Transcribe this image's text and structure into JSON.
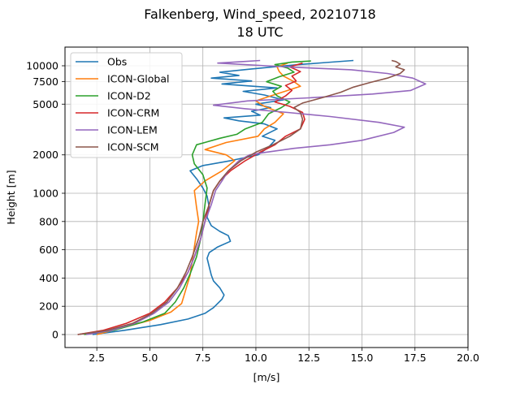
{
  "chart_data": {
    "type": "line",
    "title_line1": "Falkenberg, Wind_speed, 20210718",
    "title_line2": "18 UTC",
    "xlabel": "[m/s]",
    "ylabel": "Height [m]",
    "xlim": [
      1.0,
      20.0
    ],
    "x_ticks": [
      2.5,
      5.0,
      7.5,
      10.0,
      12.5,
      15.0,
      17.5,
      20.0
    ],
    "x_tick_labels": [
      "2.5",
      "5.0",
      "7.5",
      "10.0",
      "12.5",
      "15.0",
      "17.5",
      "20.0"
    ],
    "y_scale": "linear below 1000 m, logarithmic above",
    "y_ticks": [
      0,
      200,
      400,
      600,
      800,
      1000,
      2000,
      5000,
      7500,
      10000
    ],
    "y_tick_labels": [
      "0",
      "200",
      "400",
      "600",
      "800",
      "1000",
      "2000",
      "5000",
      "7500",
      "10000"
    ],
    "grid": true,
    "legend_position": "upper-left",
    "series": [
      {
        "name": "Obs",
        "color": "#1f77b4",
        "points": [
          [
            2.3,
            0
          ],
          [
            3.8,
            30
          ],
          [
            5.5,
            70
          ],
          [
            6.8,
            110
          ],
          [
            7.6,
            150
          ],
          [
            8.0,
            190
          ],
          [
            8.2,
            220
          ],
          [
            8.4,
            250
          ],
          [
            8.5,
            280
          ],
          [
            8.3,
            330
          ],
          [
            8.0,
            380
          ],
          [
            7.9,
            420
          ],
          [
            7.8,
            480
          ],
          [
            7.7,
            540
          ],
          [
            7.8,
            580
          ],
          [
            8.2,
            620
          ],
          [
            8.8,
            660
          ],
          [
            8.7,
            700
          ],
          [
            8.3,
            730
          ],
          [
            7.9,
            770
          ],
          [
            7.7,
            830
          ],
          [
            7.8,
            900
          ],
          [
            7.7,
            980
          ],
          [
            7.5,
            1100
          ],
          [
            7.2,
            1300
          ],
          [
            6.9,
            1500
          ],
          [
            7.5,
            1650
          ],
          [
            8.8,
            1800
          ],
          [
            10.1,
            2000
          ],
          [
            10.6,
            2300
          ],
          [
            10.9,
            2600
          ],
          [
            10.3,
            2800
          ],
          [
            11.0,
            3200
          ],
          [
            10.4,
            3500
          ],
          [
            9.2,
            3700
          ],
          [
            8.5,
            3900
          ],
          [
            10.2,
            4100
          ],
          [
            9.8,
            4400
          ],
          [
            10.7,
            4700
          ],
          [
            10.0,
            5000
          ],
          [
            11.3,
            5400
          ],
          [
            10.4,
            5900
          ],
          [
            9.4,
            6300
          ],
          [
            11.0,
            6700
          ],
          [
            8.4,
            7200
          ],
          [
            9.8,
            7600
          ],
          [
            7.9,
            8000
          ],
          [
            9.2,
            8400
          ],
          [
            8.3,
            8900
          ],
          [
            9.7,
            9400
          ],
          [
            10.8,
            9800
          ],
          [
            12.0,
            10200
          ],
          [
            13.3,
            10600
          ],
          [
            14.6,
            11000
          ]
        ]
      },
      {
        "name": "ICON-Global",
        "color": "#ff7f0e",
        "points": [
          [
            2.5,
            0
          ],
          [
            3.5,
            40
          ],
          [
            5.0,
            100
          ],
          [
            6.0,
            160
          ],
          [
            6.5,
            220
          ],
          [
            6.7,
            320
          ],
          [
            6.9,
            420
          ],
          [
            7.0,
            520
          ],
          [
            7.1,
            620
          ],
          [
            7.2,
            720
          ],
          [
            7.3,
            800
          ],
          [
            7.2,
            900
          ],
          [
            7.1,
            1050
          ],
          [
            7.6,
            1250
          ],
          [
            8.4,
            1500
          ],
          [
            9.0,
            1800
          ],
          [
            8.6,
            2000
          ],
          [
            7.6,
            2200
          ],
          [
            8.6,
            2500
          ],
          [
            10.1,
            2800
          ],
          [
            10.4,
            3200
          ],
          [
            10.9,
            3600
          ],
          [
            11.3,
            4200
          ],
          [
            10.4,
            4800
          ],
          [
            10.0,
            5300
          ],
          [
            10.7,
            5800
          ],
          [
            11.5,
            6400
          ],
          [
            12.1,
            6900
          ],
          [
            11.8,
            7500
          ],
          [
            11.3,
            8300
          ],
          [
            11.1,
            9000
          ],
          [
            11.0,
            9800
          ],
          [
            11.5,
            10500
          ]
        ]
      },
      {
        "name": "ICON-D2",
        "color": "#2ca02c",
        "points": [
          [
            1.9,
            0
          ],
          [
            3.3,
            30
          ],
          [
            4.7,
            90
          ],
          [
            5.7,
            150
          ],
          [
            6.2,
            230
          ],
          [
            6.6,
            330
          ],
          [
            6.9,
            430
          ],
          [
            7.2,
            550
          ],
          [
            7.4,
            680
          ],
          [
            7.5,
            800
          ],
          [
            7.6,
            920
          ],
          [
            7.7,
            1100
          ],
          [
            7.5,
            1400
          ],
          [
            7.1,
            1700
          ],
          [
            7.0,
            2000
          ],
          [
            7.2,
            2400
          ],
          [
            8.3,
            2700
          ],
          [
            9.1,
            2900
          ],
          [
            9.5,
            3200
          ],
          [
            10.3,
            3600
          ],
          [
            10.6,
            4200
          ],
          [
            11.2,
            4700
          ],
          [
            11.6,
            5200
          ],
          [
            11.0,
            5800
          ],
          [
            10.8,
            6300
          ],
          [
            11.2,
            6900
          ],
          [
            10.5,
            7500
          ],
          [
            11.1,
            8200
          ],
          [
            11.8,
            8900
          ],
          [
            11.5,
            9600
          ],
          [
            10.9,
            10200
          ],
          [
            11.7,
            10700
          ],
          [
            12.6,
            10900
          ]
        ]
      },
      {
        "name": "ICON-CRM",
        "color": "#d62728",
        "points": [
          [
            1.6,
            0
          ],
          [
            2.8,
            30
          ],
          [
            3.9,
            80
          ],
          [
            5.0,
            150
          ],
          [
            5.7,
            230
          ],
          [
            6.3,
            330
          ],
          [
            6.8,
            440
          ],
          [
            7.1,
            550
          ],
          [
            7.4,
            680
          ],
          [
            7.6,
            800
          ],
          [
            7.8,
            920
          ],
          [
            8.0,
            1050
          ],
          [
            8.3,
            1250
          ],
          [
            8.8,
            1500
          ],
          [
            9.5,
            1800
          ],
          [
            10.2,
            2100
          ],
          [
            10.9,
            2400
          ],
          [
            11.4,
            2800
          ],
          [
            12.1,
            3200
          ],
          [
            12.3,
            3800
          ],
          [
            12.2,
            4300
          ],
          [
            11.6,
            4800
          ],
          [
            10.9,
            5200
          ],
          [
            11.4,
            5800
          ],
          [
            11.7,
            6400
          ],
          [
            11.4,
            7000
          ],
          [
            11.9,
            7600
          ],
          [
            11.7,
            8300
          ],
          [
            12.1,
            9000
          ],
          [
            11.6,
            9800
          ],
          [
            12.2,
            10500
          ]
        ]
      },
      {
        "name": "ICON-LEM",
        "color": "#9467bd",
        "points": [
          [
            2.0,
            0
          ],
          [
            3.2,
            30
          ],
          [
            4.3,
            80
          ],
          [
            5.2,
            150
          ],
          [
            5.9,
            230
          ],
          [
            6.4,
            330
          ],
          [
            6.8,
            440
          ],
          [
            7.1,
            550
          ],
          [
            7.4,
            680
          ],
          [
            7.6,
            800
          ],
          [
            7.9,
            920
          ],
          [
            8.1,
            1050
          ],
          [
            8.4,
            1250
          ],
          [
            8.7,
            1500
          ],
          [
            9.2,
            1800
          ],
          [
            9.7,
            2000
          ],
          [
            10.5,
            2100
          ],
          [
            11.8,
            2250
          ],
          [
            13.5,
            2400
          ],
          [
            15.0,
            2600
          ],
          [
            16.5,
            3000
          ],
          [
            17.0,
            3300
          ],
          [
            15.8,
            3600
          ],
          [
            13.5,
            4000
          ],
          [
            11.5,
            4300
          ],
          [
            9.5,
            4600
          ],
          [
            8.0,
            4900
          ],
          [
            9.6,
            5300
          ],
          [
            12.5,
            5600
          ],
          [
            15.5,
            6000
          ],
          [
            17.3,
            6400
          ],
          [
            18.0,
            7200
          ],
          [
            17.4,
            8000
          ],
          [
            16.2,
            8700
          ],
          [
            14.5,
            9300
          ],
          [
            12.0,
            9700
          ],
          [
            10.5,
            10000
          ],
          [
            8.2,
            10500
          ],
          [
            9.4,
            10800
          ],
          [
            10.2,
            11000
          ]
        ]
      },
      {
        "name": "ICON-SCM",
        "color": "#8c564b",
        "points": [
          [
            1.6,
            0
          ],
          [
            3.0,
            30
          ],
          [
            4.2,
            80
          ],
          [
            5.1,
            150
          ],
          [
            5.8,
            230
          ],
          [
            6.3,
            330
          ],
          [
            6.7,
            440
          ],
          [
            7.0,
            550
          ],
          [
            7.3,
            680
          ],
          [
            7.5,
            800
          ],
          [
            7.8,
            920
          ],
          [
            8.0,
            1050
          ],
          [
            8.3,
            1250
          ],
          [
            8.7,
            1500
          ],
          [
            9.3,
            1800
          ],
          [
            10.0,
            2100
          ],
          [
            10.8,
            2400
          ],
          [
            11.6,
            2800
          ],
          [
            12.1,
            3200
          ],
          [
            12.2,
            3800
          ],
          [
            12.1,
            4300
          ],
          [
            11.8,
            4700
          ],
          [
            12.2,
            5100
          ],
          [
            13.1,
            5600
          ],
          [
            14.0,
            6200
          ],
          [
            14.6,
            6800
          ],
          [
            15.4,
            7400
          ],
          [
            16.2,
            8000
          ],
          [
            16.8,
            8700
          ],
          [
            17.0,
            9300
          ],
          [
            16.6,
            9800
          ],
          [
            16.8,
            10300
          ],
          [
            16.6,
            10800
          ],
          [
            16.4,
            11000
          ]
        ]
      }
    ]
  }
}
